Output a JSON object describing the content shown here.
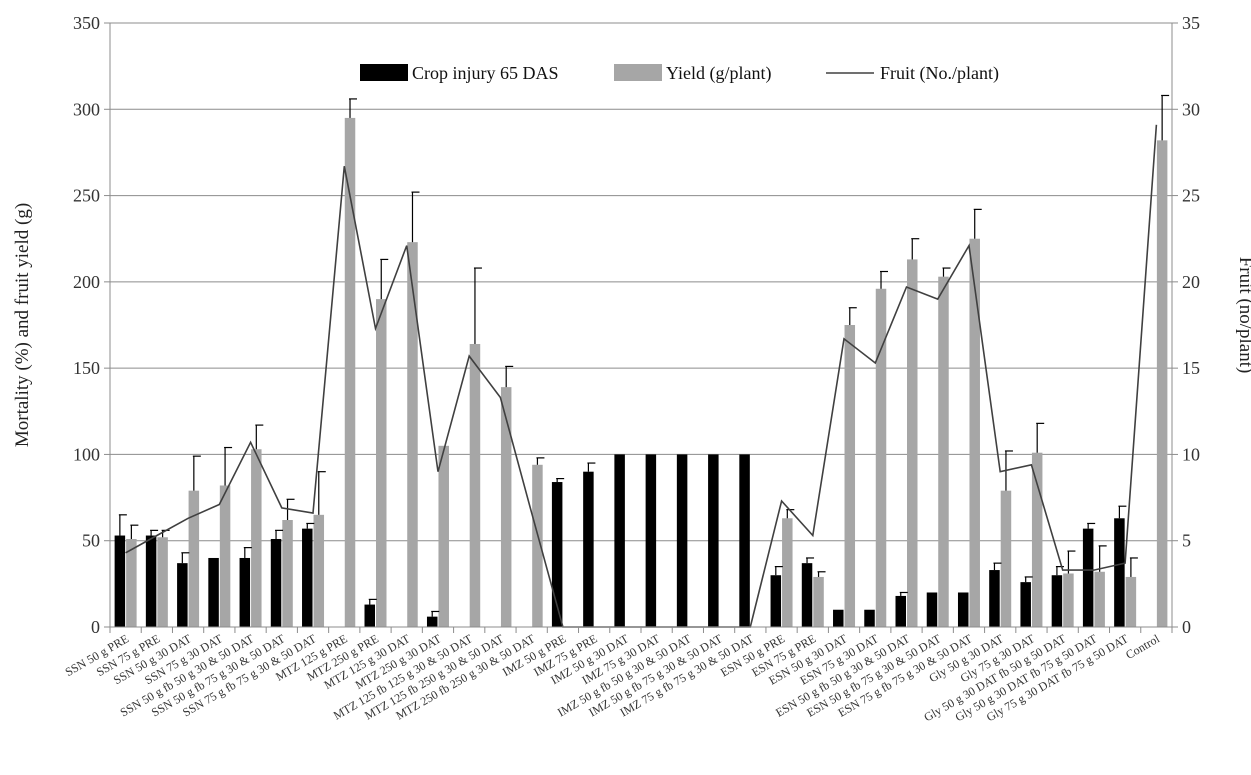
{
  "chart_data": {
    "type": "bar",
    "categories": [
      "SSN 50 g PRE",
      "SSN 75 g PRE",
      "SSN 50 g 30 DAT",
      "SSN 75 g 30 DAT",
      "SSN 50 g fb 50 g 30 & 50 DAT",
      "SSN 50 g fb 75 g 30 & 50 DAT",
      "SSN 75 g fb 75 g 30 & 50 DAT",
      "MTZ 125 g PRE",
      "MTZ 250 g PRE",
      "MTZ 125 g 30 DAT",
      "MTZ 250 g 30 DAT",
      "MTZ 125 fb 125 g 30 & 50 DAT",
      "MTZ 125 fb 250 g 30 & 50 DAT",
      "MTZ 250 fb 250 g 30 & 50 DAT",
      "IMZ 50 g PRE",
      "IMZ 75 g PRE",
      "IMZ 50 g 30 DAT",
      "IMZ 75 g 30 DAT",
      "IMZ 50 g fb 50 g 30 & 50 DAT",
      "IMZ 50 g fb 75 g 30 & 50 DAT",
      "IMZ 75 g fb 75 g 30 & 50 DAT",
      "ESN 50 g PRE",
      "ESN 75 g PRE",
      "ESN 50 g 30 DAT",
      "ESN 75 g 30 DAT",
      "ESN 50 g fb 50 g 30 & 50 DAT",
      "ESN 50 g fb 75 g 30 & 50 DAT",
      "ESN 75 g fb 75 g 30 & 50 DAT",
      "Gly 50 g 30 DAT",
      "Gly 75 g 30 DAT",
      "Gly 50 g 30 DAT fb 50 g 50 DAT",
      "Gly 50 g 30 DAT fb 75 g 50 DAT",
      "Gly 75 g 30 DAT fb 75 g 50 DAT",
      "Control"
    ],
    "series": [
      {
        "name": "Crop injury 65 DAS",
        "kind": "bar",
        "axis": "left",
        "color": "#000000",
        "values": [
          53,
          53,
          37,
          40,
          40,
          51,
          57,
          0,
          13,
          0,
          6,
          0,
          0,
          0,
          84,
          90,
          100,
          100,
          100,
          100,
          100,
          30,
          37,
          10,
          10,
          18,
          20,
          20,
          33,
          26,
          30,
          57,
          63,
          0
        ],
        "errors": [
          12,
          3,
          6,
          0,
          6,
          5,
          3,
          0,
          3,
          0,
          3,
          0,
          0,
          0,
          2,
          5,
          0,
          0,
          0,
          0,
          0,
          5,
          3,
          0,
          0,
          2,
          0,
          0,
          4,
          3,
          5,
          3,
          7,
          0
        ]
      },
      {
        "name": "Yield (g/plant)",
        "kind": "bar",
        "axis": "left",
        "color": "#a6a6a6",
        "values": [
          51,
          52,
          79,
          82,
          103,
          62,
          65,
          295,
          190,
          223,
          105,
          164,
          139,
          94,
          0,
          0,
          0,
          0,
          0,
          0,
          0,
          63,
          29,
          175,
          196,
          213,
          203,
          225,
          79,
          101,
          31,
          32,
          29,
          282
        ],
        "errors": [
          8,
          4,
          20,
          22,
          14,
          12,
          25,
          11,
          23,
          29,
          0,
          44,
          12,
          4,
          0,
          0,
          0,
          0,
          0,
          0,
          0,
          5,
          3,
          10,
          10,
          12,
          5,
          17,
          23,
          17,
          13,
          15,
          11,
          26
        ]
      },
      {
        "name": "Fruit (No./plant)",
        "kind": "line",
        "axis": "right",
        "color": "#404040",
        "values": [
          4.3,
          5.3,
          6.3,
          7.1,
          10.7,
          6.9,
          6.6,
          26.7,
          17.3,
          22.1,
          9.0,
          15.7,
          13.3,
          6.6,
          0,
          0,
          0,
          0,
          0,
          0,
          0,
          7.3,
          5.3,
          16.7,
          15.3,
          19.7,
          19.0,
          22.1,
          9.0,
          9.4,
          3.3,
          3.3,
          3.7,
          29.1
        ]
      }
    ],
    "ylabel": "Mortality (%)  and fruit yield (g)",
    "y2label": "Fruit (no/plant)",
    "ylim": [
      0,
      350
    ],
    "y2lim": [
      0,
      35
    ],
    "yticks": [
      0,
      50,
      100,
      150,
      200,
      250,
      300,
      350
    ],
    "y2ticks": [
      0,
      5,
      10,
      15,
      20,
      25,
      30,
      35
    ],
    "grid": true,
    "legend_position": "top-center"
  }
}
